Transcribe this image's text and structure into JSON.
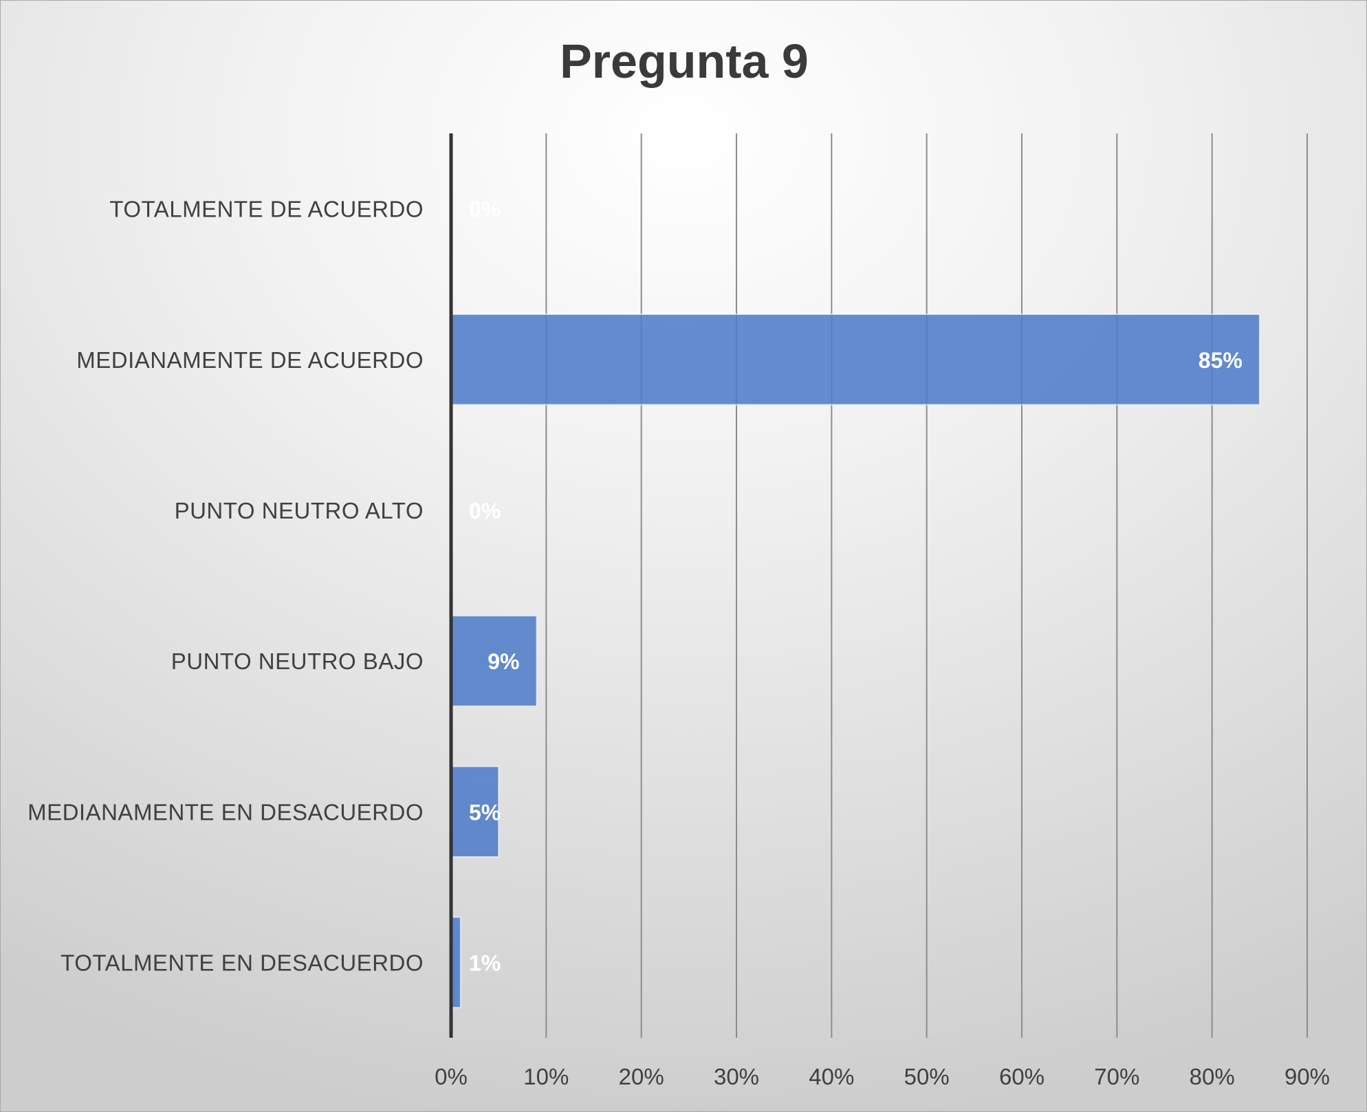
{
  "chart_data": {
    "type": "bar",
    "orientation": "horizontal",
    "title": "Pregunta 9",
    "categories": [
      "TOTALMENTE DE  ACUERDO",
      "MEDIANAMENTE DE ACUERDO",
      "PUNTO NEUTRO ALTO",
      "PUNTO NEUTRO BAJO",
      "MEDIANAMENTE EN DESACUERDO",
      "TOTALMENTE EN DESACUERDO"
    ],
    "values": [
      0,
      85,
      0,
      9,
      5,
      1
    ],
    "value_labels": [
      "0%",
      "85%",
      "0%",
      "9%",
      "5%",
      "1%"
    ],
    "x_ticks": [
      0,
      10,
      20,
      30,
      40,
      50,
      60,
      70,
      80,
      90
    ],
    "x_tick_labels": [
      "0%",
      "10%",
      "20%",
      "30%",
      "40%",
      "50%",
      "60%",
      "70%",
      "80%",
      "90%"
    ],
    "xlim": [
      0,
      90
    ],
    "xlabel": "",
    "ylabel": "",
    "grid": "vertical",
    "legend": "none",
    "colors": {
      "bar": "#4f7cc8",
      "data_label": "#ffffff",
      "axis": "#333333",
      "grid": "#8c8c8c"
    }
  }
}
